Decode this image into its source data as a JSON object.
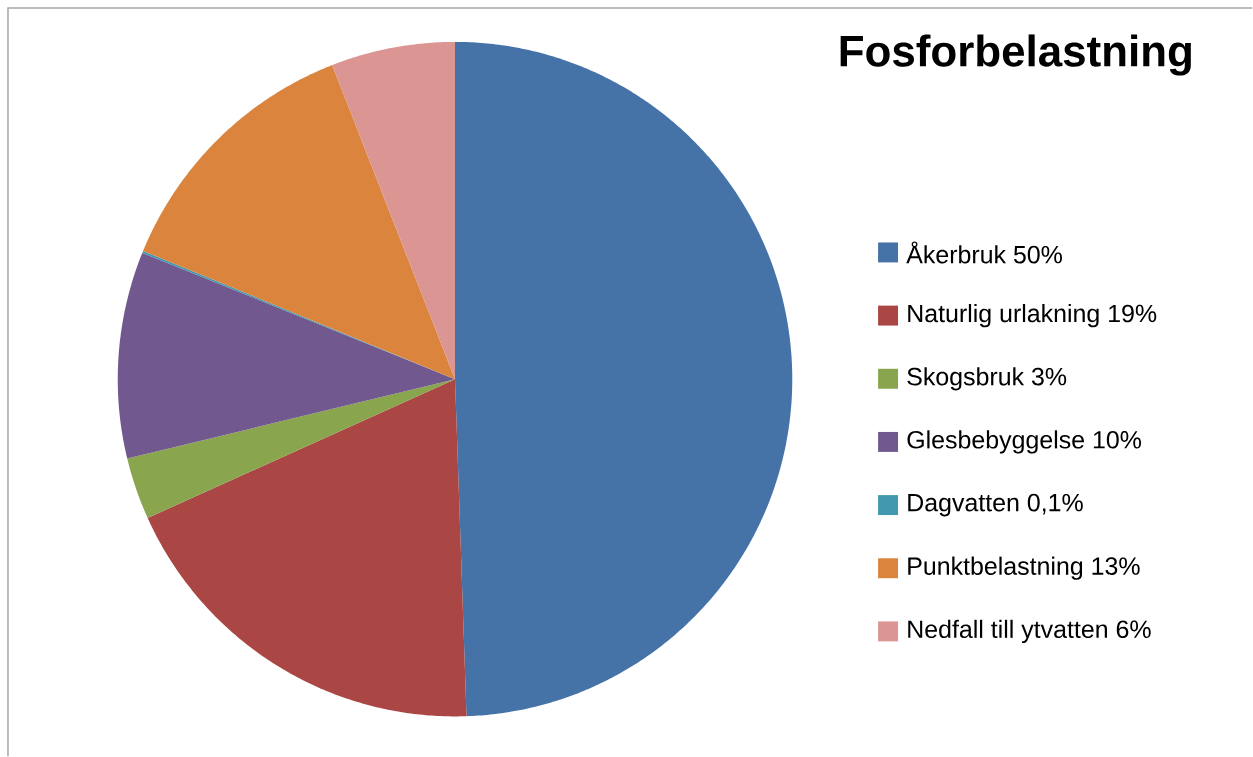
{
  "chart_data": {
    "type": "pie",
    "title": "Fosforbelastning",
    "categories": [
      "Åkerbruk 50%",
      "Naturlig urlakning 19%",
      "Skogsbruk 3%",
      "Glesbebyggelse 10%",
      "Dagvatten 0,1%",
      "Punktbelastning 13%",
      "Nedfall till ytvatten 6%"
    ],
    "values": [
      50,
      19,
      3,
      10,
      0.1,
      13,
      6
    ],
    "colors": [
      "#4572a7",
      "#aa4643",
      "#89a54e",
      "#71588f",
      "#4198af",
      "#db843d",
      "#db9694"
    ],
    "legend": "right"
  }
}
